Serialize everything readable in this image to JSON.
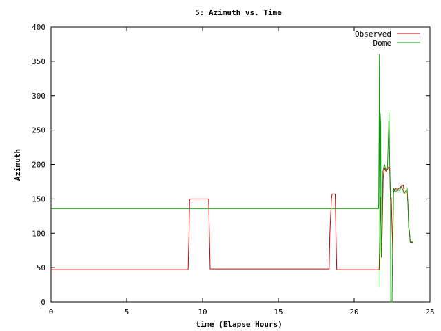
{
  "chart_data": {
    "type": "line",
    "title": "5: Azimuth vs. Time",
    "xlabel": "time (Elapse Hours)",
    "ylabel": "Azimuth",
    "xlim": [
      0,
      25
    ],
    "ylim": [
      0,
      400
    ],
    "xticks": [
      0,
      5,
      10,
      15,
      20,
      25
    ],
    "yticks": [
      0,
      50,
      100,
      150,
      200,
      250,
      300,
      350,
      400
    ],
    "grid": false,
    "legend_position": "top-right",
    "series": [
      {
        "name": "Observed",
        "color": "#cc0000",
        "points": [
          [
            0,
            47
          ],
          [
            9.05,
            47
          ],
          [
            9.1,
            90
          ],
          [
            9.15,
            148
          ],
          [
            9.2,
            150
          ],
          [
            10.4,
            150
          ],
          [
            10.45,
            100
          ],
          [
            10.5,
            48
          ],
          [
            18.35,
            48
          ],
          [
            18.4,
            100
          ],
          [
            18.5,
            150
          ],
          [
            18.55,
            157
          ],
          [
            18.75,
            157
          ],
          [
            18.8,
            100
          ],
          [
            18.85,
            47
          ],
          [
            21.65,
            47
          ],
          [
            21.7,
            100
          ],
          [
            21.75,
            153
          ],
          [
            21.8,
            65
          ],
          [
            21.85,
            100
          ],
          [
            21.92,
            180
          ],
          [
            22.0,
            195
          ],
          [
            22.1,
            190
          ],
          [
            22.2,
            193
          ],
          [
            22.3,
            197
          ],
          [
            22.35,
            190
          ],
          [
            22.4,
            148
          ],
          [
            22.45,
            152
          ],
          [
            22.5,
            110
          ],
          [
            22.55,
            70
          ],
          [
            22.6,
            160
          ],
          [
            22.7,
            165
          ],
          [
            22.9,
            164
          ],
          [
            23.1,
            168
          ],
          [
            23.25,
            170
          ],
          [
            23.3,
            160
          ],
          [
            23.45,
            160
          ],
          [
            23.55,
            145
          ],
          [
            23.6,
            110
          ],
          [
            23.65,
            103
          ],
          [
            23.7,
            87
          ],
          [
            23.9,
            86
          ]
        ]
      },
      {
        "name": "Dome",
        "color": "#00a000",
        "points": [
          [
            0,
            136
          ],
          [
            21.6,
            136
          ],
          [
            21.62,
            140
          ],
          [
            21.65,
            250
          ],
          [
            21.67,
            360
          ],
          [
            21.7,
            22
          ],
          [
            21.72,
            275
          ],
          [
            21.75,
            260
          ],
          [
            21.78,
            75
          ],
          [
            21.8,
            65
          ],
          [
            21.9,
            190
          ],
          [
            22.0,
            200
          ],
          [
            22.1,
            192
          ],
          [
            22.2,
            196
          ],
          [
            22.28,
            255
          ],
          [
            22.3,
            276
          ],
          [
            22.35,
            200
          ],
          [
            22.4,
            145
          ],
          [
            22.42,
            0
          ],
          [
            22.5,
            0
          ],
          [
            22.55,
            100
          ],
          [
            22.6,
            166
          ],
          [
            22.7,
            160
          ],
          [
            22.9,
            163
          ],
          [
            23.0,
            162
          ],
          [
            23.1,
            168
          ],
          [
            23.2,
            164
          ],
          [
            23.3,
            157
          ],
          [
            23.4,
            161
          ],
          [
            23.5,
            165
          ],
          [
            23.55,
            143
          ],
          [
            23.6,
            108
          ],
          [
            23.65,
            100
          ],
          [
            23.7,
            88
          ],
          [
            23.9,
            87
          ]
        ]
      }
    ]
  }
}
